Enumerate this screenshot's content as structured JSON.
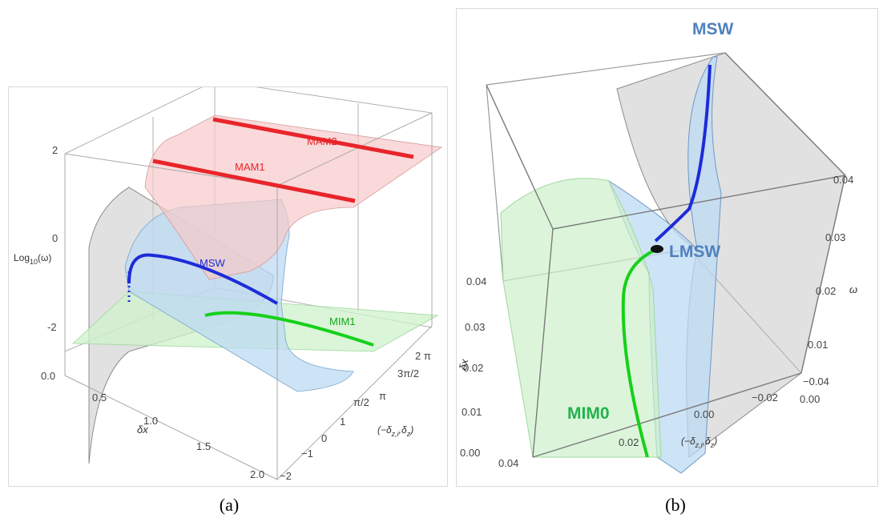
{
  "panel_a": {
    "caption": "(a)",
    "curve_labels": {
      "mam2": "MAM2",
      "mam1": "MAM1",
      "msw": "MSW",
      "mim1": "MIM1"
    },
    "z_axis": {
      "label": "Log",
      "label_sub": "10",
      "label_tail": "(ω)",
      "ticks": [
        "2",
        "0",
        "-2"
      ]
    },
    "x_axis": {
      "label": "δx",
      "ticks": [
        "0.0",
        "0.5",
        "1.0",
        "1.5",
        "2.0"
      ]
    },
    "y_axis": {
      "label": "(−δ",
      "label_sub": "z,i",
      "label_mid": ",δ",
      "label_sub2": "z",
      "label_end": ")",
      "numeric_ticks": [
        "−2",
        "−1",
        "0",
        "1"
      ],
      "pi_ticks": [
        "π/2",
        "π",
        "3π/2",
        "2 π"
      ]
    },
    "colors": {
      "mam": "#e8252a",
      "msw": "#1d2bd8",
      "mim": "#17d01a",
      "red_sheet": "#f7c9c9",
      "blue_sheet": "#bcd9f3",
      "green_sheet": "#cdf1cb",
      "gray_sheet": "#c9c9c9"
    }
  },
  "panel_b": {
    "caption": "(b)",
    "curve_labels": {
      "msw": "MSW",
      "lmsw": "LMSW",
      "mim0": "MIM0"
    },
    "omega_axis": {
      "label": "ω",
      "ticks": [
        "0.04",
        "0.03",
        "0.02",
        "0.01",
        "0.00"
      ]
    },
    "dx_axis": {
      "label": "δx",
      "ticks": [
        "0.04",
        "0.03",
        "0.02",
        "0.01",
        "0.00"
      ]
    },
    "dz_axis": {
      "label": "(−δ",
      "label_sub": "z,i",
      "label_mid": ",δ",
      "label_sub2": "z",
      "label_end": ")",
      "ticks": [
        "0.04",
        "0.02",
        "0.00",
        "−0.02",
        "−0.04"
      ]
    },
    "colors": {
      "label_blue": "#4f81bd",
      "label_green": "#22b14c",
      "msw": "#1d2bd8",
      "mim": "#17d01a"
    }
  }
}
